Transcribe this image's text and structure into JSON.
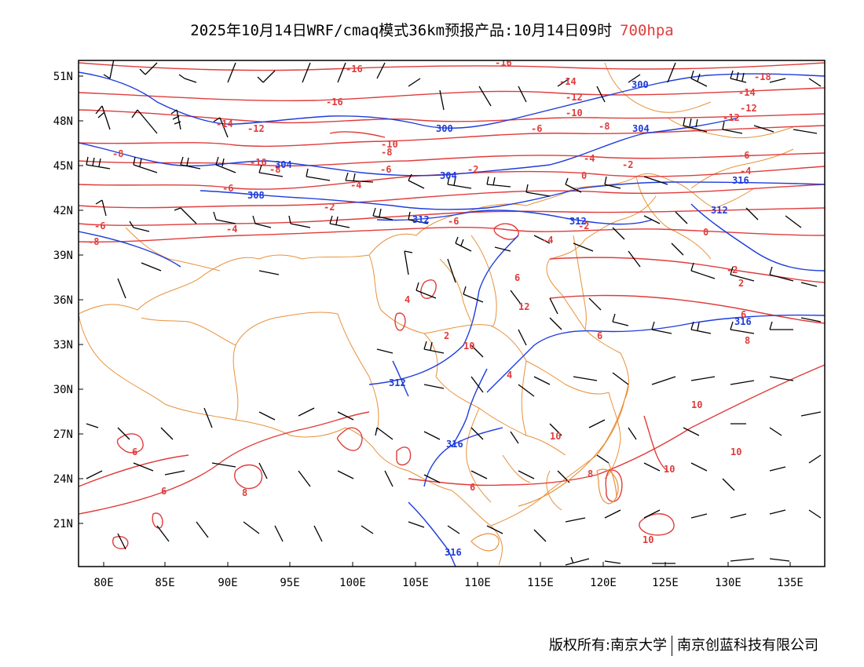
{
  "title": {
    "main": "2025年10月14日WRF/cmaq模式36km预报产品:10月14日09时",
    "level": "700hpa"
  },
  "axes": {
    "lat_labels": [
      "51N",
      "48N",
      "45N",
      "42N",
      "39N",
      "36N",
      "33N",
      "30N",
      "27N",
      "24N",
      "21N"
    ],
    "lon_labels": [
      "80E",
      "85E",
      "90E",
      "95E",
      "100E",
      "105E",
      "110E",
      "115E",
      "120E",
      "125E",
      "130E",
      "135E"
    ]
  },
  "contours": {
    "temperature_labels": [
      "-18",
      "-16",
      "-16",
      "-14",
      "-12",
      "-16",
      "-14",
      "-12",
      "-10",
      "-12",
      "-14",
      "-12",
      "-10",
      "-8",
      "-6",
      "-8",
      "-8",
      "-10",
      "-8",
      "-6",
      "-4",
      "-2",
      "-6",
      "-4",
      "-6",
      "-4",
      "-2",
      "0",
      "-8",
      "-6",
      "-4",
      "-2",
      "-6",
      "-4",
      "-2",
      "-2",
      "0",
      "2",
      "4",
      "6",
      "2",
      "4",
      "6",
      "6",
      "8",
      "6",
      "6",
      "8",
      "6",
      "8",
      "10",
      "10",
      "12",
      "10",
      "10",
      "10",
      "10"
    ],
    "height_labels": [
      "300",
      "300",
      "304",
      "304",
      "304",
      "308",
      "312",
      "312",
      "312",
      "312",
      "316",
      "316",
      "316",
      "316"
    ]
  },
  "colors": {
    "temperature": "#e03c3c",
    "height": "#1e3cdc",
    "boundary": "#e8913a",
    "wind": "#000000"
  },
  "footer": {
    "left": "版权所有:南京大学",
    "right": "南京创蓝科技有限公司"
  }
}
